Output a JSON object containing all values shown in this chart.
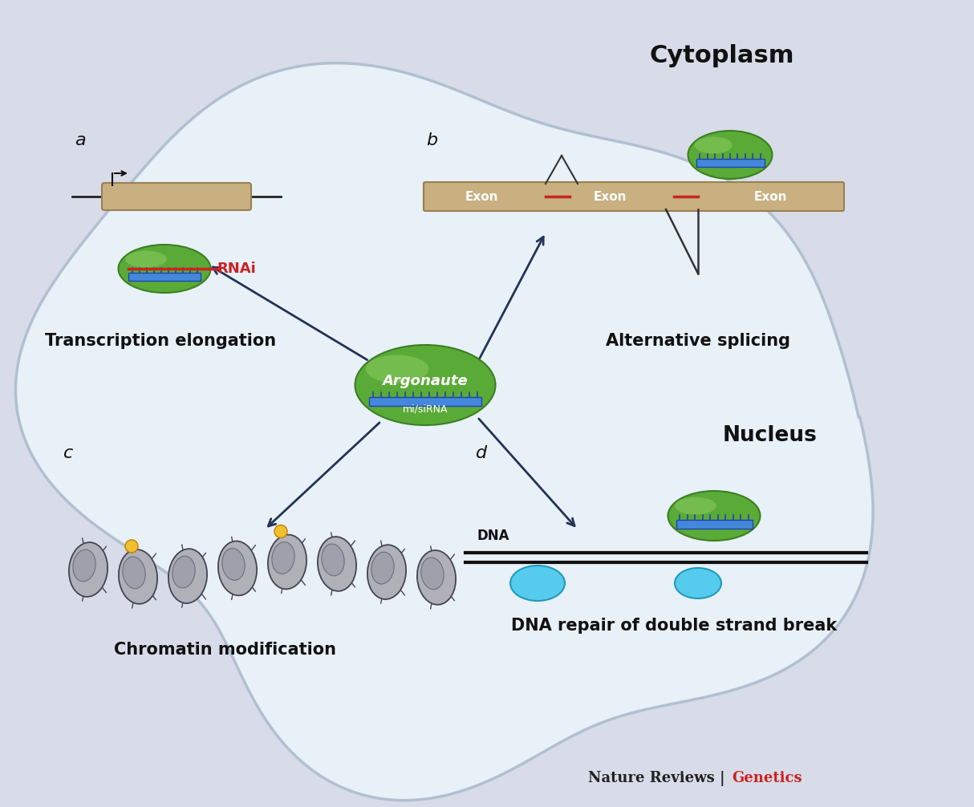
{
  "bg_color": "#d8dce8",
  "cell_facecolor": "#e8f0f8",
  "cell_edgecolor": "#b0c0d0",
  "title_cytoplasm": "Cytoplasm",
  "title_nucleus": "Nucleus",
  "label_a": "a",
  "label_b": "b",
  "label_c": "c",
  "label_d": "d",
  "text_transcription": "Transcription elongation",
  "text_splicing": "Alternative splicing",
  "text_chromatin": "Chromatin modification",
  "text_dna_repair": "DNA repair of double strand break",
  "text_argonaute": "Argonaute",
  "text_misiRNA": "mi/siRNA",
  "text_RNAi": "RNAi",
  "text_DNA": "DNA",
  "text_exon": "Exon",
  "footer_black": "Nature Reviews | ",
  "footer_red": "Genetics",
  "green_dark": "#3a8020",
  "green_mid": "#5aaa38",
  "green_light": "#88cc60",
  "blue_dark": "#2244aa",
  "blue_mid": "#4488dd",
  "red_color": "#cc2222",
  "cyan_color": "#55ccee",
  "tan_color": "#c8b080",
  "tan_edge": "#9a8050",
  "arrow_color": "#223355",
  "nucleosome_color": "#aaaaaa",
  "nucleosome_edge": "#555566"
}
